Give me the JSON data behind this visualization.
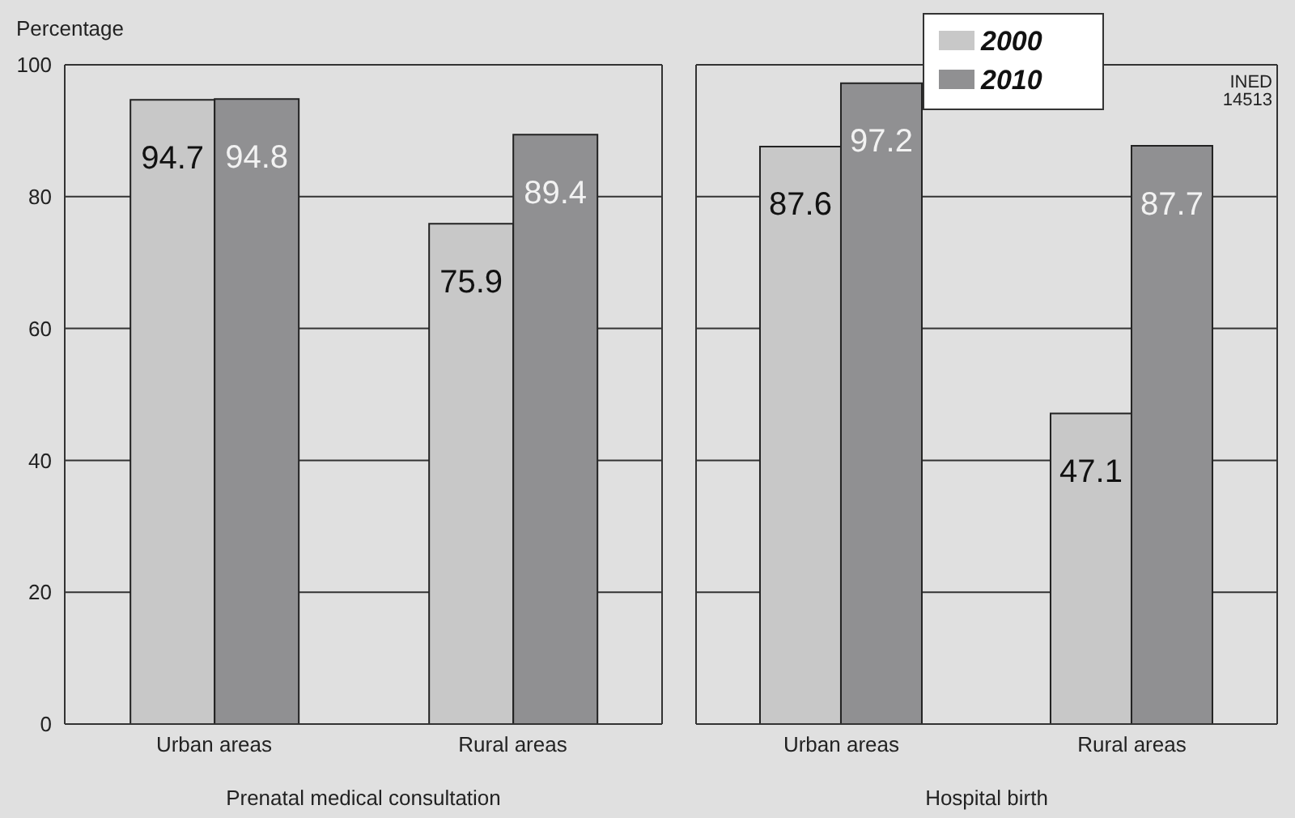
{
  "chart_data": [
    {
      "type": "bar",
      "xlabel": "Prenatal medical consultation",
      "ylabel": "Percentage",
      "categories": [
        "Urban areas",
        "Rural areas"
      ],
      "series": [
        {
          "color": "#c8c8c8",
          "values": [
            94.7,
            75.9
          ]
        },
        {
          "color": "#909092",
          "values": [
            94.8,
            89.4
          ]
        }
      ],
      "ylim": [
        0,
        100
      ],
      "yticks": [
        0,
        20,
        40,
        60,
        80,
        100
      ],
      "grid": "y",
      "data_labels": true,
      "legend": false
    },
    {
      "type": "bar",
      "xlabel": "Hospital birth",
      "categories": [
        "Urban areas",
        "Rural areas"
      ],
      "series": [
        {
          "name": "2000",
          "color": "#c8c8c8",
          "values": [
            87.6,
            47.1
          ]
        },
        {
          "name": "2010",
          "color": "#909092",
          "values": [
            97.2,
            87.7
          ]
        }
      ],
      "ylim": [
        0,
        100
      ],
      "yticks": [
        0,
        20,
        40,
        60,
        80,
        100
      ],
      "grid": "y",
      "data_labels": true,
      "legend": "top left",
      "tick_labels": "x",
      "annotations": [
        "INED 14513"
      ]
    }
  ]
}
